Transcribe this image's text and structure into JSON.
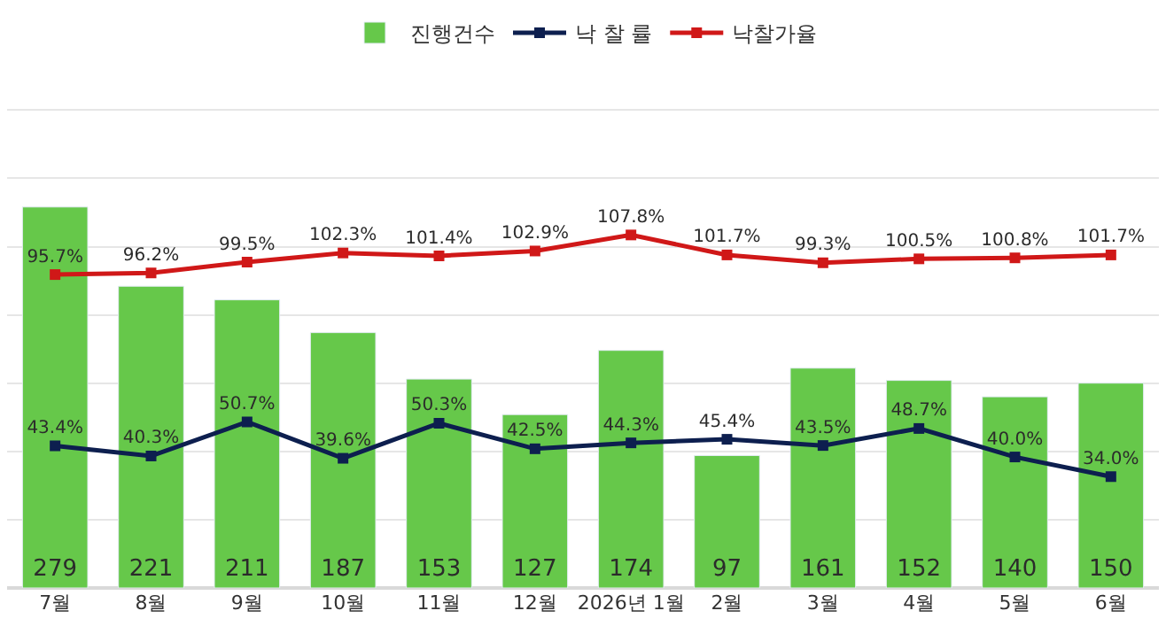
{
  "chart_data": {
    "type": "bar",
    "categories": [
      "7월",
      "8월",
      "9월",
      "10월",
      "11월",
      "12월",
      "2026년 1월",
      "2월",
      "3월",
      "4월",
      "5월",
      "6월"
    ],
    "series": [
      {
        "name": "진행건수",
        "color": "#66c84a",
        "values": [
          279,
          221,
          211,
          187,
          153,
          127,
          174,
          97,
          161,
          152,
          140,
          150
        ],
        "value_labels": [
          "279",
          "221",
          "211",
          "187",
          "153",
          "127",
          "174",
          "97",
          "161",
          "152",
          "140",
          "150"
        ]
      },
      {
        "name": "낙 찰 률",
        "type": "line",
        "axis": "y2",
        "color": "#0d1f4f",
        "values": [
          43.4,
          40.3,
          50.7,
          39.6,
          50.3,
          42.5,
          44.3,
          45.4,
          43.5,
          48.7,
          40.0,
          34.0
        ],
        "value_labels": [
          "43.4%",
          "40.3%",
          "50.7%",
          "39.6%",
          "50.3%",
          "42.5%",
          "44.3%",
          "45.4%",
          "43.5%",
          "48.7%",
          "40.0%",
          "34.0%"
        ]
      },
      {
        "name": "낙찰가율",
        "type": "line",
        "axis": "y2",
        "color": "#d01818",
        "values": [
          95.7,
          96.2,
          99.5,
          102.3,
          101.4,
          102.9,
          107.8,
          101.7,
          99.3,
          100.5,
          100.8,
          101.7
        ],
        "value_labels": [
          "95.7%",
          "96.2%",
          "99.5%",
          "102.3%",
          "101.4%",
          "102.9%",
          "107.8%",
          "101.7%",
          "99.3%",
          "100.5%",
          "100.8%",
          "101.7%"
        ]
      }
    ],
    "legend": "top",
    "grid": "y",
    "marker": "square",
    "line_style": "solid",
    "tick_labels": "x"
  }
}
